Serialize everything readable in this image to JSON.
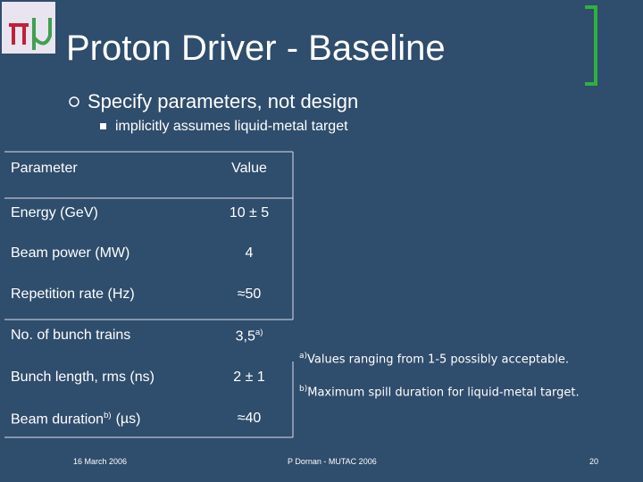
{
  "header": {
    "title": "Proton Driver - Baseline"
  },
  "bullets": [
    {
      "text": "Specify parameters, not design",
      "sub": [
        "implicitly assumes liquid-metal target"
      ]
    }
  ],
  "table": {
    "header": [
      "Parameter",
      "Value"
    ],
    "rows": [
      {
        "label": "Energy (GeV)",
        "value": "10 ± 5"
      },
      {
        "label": "Beam power (MW)",
        "value": "4"
      },
      {
        "label": "Repetition rate (Hz)",
        "value": "≈50"
      },
      {
        "label": "No. of bunch trains",
        "value": "3,5",
        "value_sup": "a)"
      },
      {
        "label": "Bunch length, rms (ns)",
        "value": "2 ± 1"
      },
      {
        "label": "Beam duration",
        "label_sup": "b)",
        "label_suffix": "(µs)",
        "value": "≈40"
      }
    ]
  },
  "footnotes": [
    {
      "mark": "a)",
      "text": "Values ranging from 1-5 possibly acceptable."
    },
    {
      "mark": "b)",
      "text": "Maximum spill duration for liquid-metal target."
    }
  ],
  "footer": {
    "date": "16 March 2006",
    "author": "P Dornan - MUTAC 2006",
    "page": "20"
  }
}
